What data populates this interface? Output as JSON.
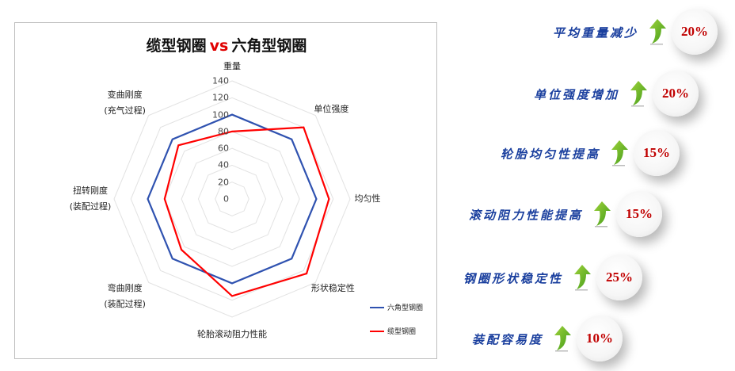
{
  "chart_data": {
    "type": "radar",
    "title_left": "缆型钢圈",
    "title_vs": "vs",
    "title_right": "六角型钢圈",
    "categories": [
      "重量",
      "单位强度",
      "均匀性",
      "形状稳定性",
      "轮胎滚动阻力性能",
      "弯曲刚度\n(装配过程)",
      "扭转刚度\n(装配过程)",
      "变曲刚度\n(充气过程)"
    ],
    "rlim": [
      0,
      140
    ],
    "ticks": [
      "0",
      "20",
      "40",
      "60",
      "80",
      "100",
      "120",
      "140"
    ],
    "grid": true,
    "legend_position": "bottom-right",
    "series": [
      {
        "name": "六角型钢圈",
        "color": "#2f52b0",
        "values": [
          100,
          100,
          100,
          100,
          100,
          100,
          100,
          100
        ]
      },
      {
        "name": "缆型钢圈",
        "color": "#ff0000",
        "values": [
          80,
          120,
          115,
          125,
          115,
          85,
          80,
          90
        ]
      }
    ]
  },
  "improvements": [
    {
      "label": "平均重量减少",
      "value": "20%"
    },
    {
      "label": "单位强度增加",
      "value": "20%"
    },
    {
      "label": "轮胎均匀性提高",
      "value": "15%"
    },
    {
      "label": "滚动阻力性能提高",
      "value": "15%"
    },
    {
      "label": "钢圈形状稳定性",
      "value": "25%"
    },
    {
      "label": "装配容易度",
      "value": "10%"
    }
  ],
  "arrow_icon": "green-up-arrow-icon"
}
